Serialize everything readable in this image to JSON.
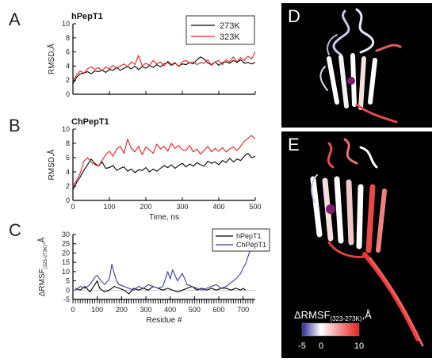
{
  "panel_letters": [
    "A",
    "B",
    "C",
    "D",
    "E"
  ],
  "chart_data": [
    {
      "type": "line",
      "title": "hPepT1",
      "xlabel": "",
      "ylabel": "RMSD,Å",
      "xlim": [
        0,
        500
      ],
      "ylim": [
        0,
        10
      ],
      "yticks": [
        "0",
        "2",
        "4",
        "6",
        "8",
        "10"
      ],
      "legend_position": "top-right",
      "series": [
        {
          "name": "273K",
          "color": "#000000",
          "x": [
            0,
            10,
            20,
            30,
            40,
            50,
            60,
            70,
            80,
            90,
            100,
            110,
            120,
            130,
            140,
            150,
            160,
            170,
            180,
            190,
            200,
            210,
            220,
            230,
            240,
            250,
            260,
            270,
            280,
            290,
            300,
            310,
            320,
            330,
            340,
            350,
            360,
            370,
            380,
            390,
            400,
            410,
            420,
            430,
            440,
            450,
            460,
            470,
            480,
            490,
            500
          ],
          "y": [
            1.5,
            2.4,
            2.9,
            3.0,
            3.2,
            2.9,
            3.3,
            3.2,
            3.4,
            3.1,
            3.5,
            3.4,
            3.8,
            3.4,
            3.7,
            3.9,
            3.6,
            4.0,
            3.5,
            3.9,
            3.7,
            4.1,
            3.8,
            4.2,
            3.9,
            4.3,
            4.5,
            4.1,
            4.4,
            4.0,
            4.3,
            4.2,
            4.5,
            4.3,
            4.9,
            5.3,
            5.0,
            4.4,
            4.2,
            4.6,
            4.1,
            4.5,
            4.6,
            4.4,
            4.8,
            4.5,
            4.9,
            4.4,
            4.5,
            4.3,
            4.5
          ]
        },
        {
          "name": "323K",
          "color": "#e8201f",
          "x": [
            0,
            10,
            20,
            30,
            40,
            50,
            60,
            70,
            80,
            90,
            100,
            110,
            120,
            130,
            140,
            150,
            160,
            170,
            180,
            190,
            200,
            210,
            220,
            230,
            240,
            250,
            260,
            270,
            280,
            290,
            300,
            310,
            320,
            330,
            340,
            350,
            360,
            370,
            380,
            390,
            400,
            410,
            420,
            430,
            440,
            450,
            460,
            470,
            480,
            490,
            500
          ],
          "y": [
            2.0,
            2.7,
            3.3,
            3.0,
            3.6,
            3.9,
            3.5,
            3.8,
            3.3,
            3.9,
            3.6,
            4.1,
            3.7,
            4.0,
            4.3,
            3.9,
            4.6,
            4.2,
            5.5,
            4.0,
            4.4,
            4.1,
            4.8,
            4.3,
            4.6,
            4.0,
            4.7,
            4.2,
            4.5,
            3.9,
            4.6,
            4.8,
            4.4,
            4.6,
            4.2,
            4.5,
            4.4,
            4.9,
            4.1,
            4.6,
            4.8,
            4.2,
            4.9,
            4.6,
            5.3,
            4.6,
            5.2,
            4.8,
            5.4,
            5.0,
            6.0
          ]
        }
      ]
    },
    {
      "type": "line",
      "title": "ChPepT1",
      "xlabel": "Time, ns",
      "ylabel": "RMSD,Å",
      "xlim": [
        0,
        500
      ],
      "ylim": [
        0,
        10
      ],
      "yticks": [
        "0",
        "2",
        "4",
        "6",
        "8",
        "10"
      ],
      "xticks": [
        "0",
        "100",
        "200",
        "300",
        "400",
        "500"
      ],
      "series": [
        {
          "name": "273K",
          "color": "#000000",
          "x": [
            0,
            10,
            20,
            30,
            40,
            50,
            60,
            70,
            80,
            90,
            100,
            110,
            120,
            130,
            140,
            150,
            160,
            170,
            180,
            190,
            200,
            210,
            220,
            230,
            240,
            250,
            260,
            270,
            280,
            290,
            300,
            310,
            320,
            330,
            340,
            350,
            360,
            370,
            380,
            390,
            400,
            410,
            420,
            430,
            440,
            450,
            460,
            470,
            480,
            490,
            500
          ],
          "y": [
            1.5,
            2.5,
            3.3,
            4.2,
            5.0,
            5.8,
            5.2,
            4.8,
            5.4,
            4.5,
            4.6,
            4.9,
            4.2,
            4.5,
            4.7,
            4.1,
            4.4,
            3.9,
            4.3,
            4.2,
            4.6,
            4.0,
            4.4,
            4.1,
            4.5,
            4.9,
            4.6,
            5.0,
            4.5,
            4.9,
            5.2,
            4.7,
            5.1,
            4.8,
            5.3,
            5.0,
            4.8,
            5.5,
            5.2,
            5.4,
            5.0,
            5.6,
            5.3,
            5.9,
            5.4,
            5.8,
            5.6,
            6.2,
            6.6,
            6.0,
            6.2
          ]
        },
        {
          "name": "323K",
          "color": "#e8201f",
          "x": [
            0,
            10,
            20,
            30,
            40,
            50,
            60,
            70,
            80,
            90,
            100,
            110,
            120,
            130,
            140,
            150,
            160,
            170,
            180,
            190,
            200,
            210,
            220,
            230,
            240,
            250,
            260,
            270,
            280,
            290,
            300,
            310,
            320,
            330,
            340,
            350,
            360,
            370,
            380,
            390,
            400,
            410,
            420,
            430,
            440,
            450,
            460,
            470,
            480,
            490,
            500
          ],
          "y": [
            2.0,
            2.8,
            3.8,
            5.5,
            6.0,
            5.4,
            5.0,
            4.8,
            5.6,
            6.4,
            6.9,
            6.2,
            7.2,
            7.6,
            6.6,
            8.6,
            7.3,
            6.8,
            7.6,
            6.4,
            7.5,
            7.1,
            6.6,
            7.9,
            7.2,
            7.6,
            6.9,
            8.0,
            7.3,
            7.7,
            7.1,
            7.0,
            7.7,
            6.8,
            7.2,
            6.5,
            7.0,
            7.6,
            6.8,
            7.3,
            6.9,
            7.4,
            6.8,
            7.2,
            7.5,
            7.0,
            7.6,
            8.3,
            8.7,
            9.1,
            8.6
          ]
        }
      ]
    },
    {
      "type": "line",
      "title": "",
      "xlabel": "Residue #",
      "ylabel": "ΔRMSF(323-273K),Å",
      "ylabel_main": "ΔRMSF",
      "ylabel_sub": "(323-273K)",
      "ylabel_tail": ",Å",
      "xlim": [
        0,
        750
      ],
      "ylim": [
        -5,
        30
      ],
      "yticks": [
        "-5",
        "0",
        "5",
        "10",
        "15",
        "20",
        "25",
        "30"
      ],
      "xticks": [
        "0",
        "100",
        "200",
        "300",
        "400",
        "500",
        "600",
        "700"
      ],
      "legend_position": "top-right",
      "series": [
        {
          "name": "hPepT1",
          "color": "#000000",
          "x": [
            10,
            30,
            50,
            70,
            90,
            100,
            110,
            130,
            150,
            170,
            190,
            210,
            230,
            250,
            270,
            290,
            310,
            330,
            350,
            370,
            390,
            410,
            430,
            450,
            470,
            490,
            510,
            530,
            550,
            570,
            590,
            610,
            630,
            650,
            670,
            690,
            700,
            710
          ],
          "y": [
            1,
            0,
            2,
            -1,
            3,
            5,
            1,
            -1,
            0,
            2,
            1,
            0,
            -2,
            1,
            0,
            1,
            0,
            2,
            1,
            0,
            1,
            0,
            -1,
            0,
            1,
            2,
            0,
            1,
            0,
            1,
            0,
            1,
            1,
            0,
            1,
            0,
            1,
            0
          ]
        },
        {
          "name": "ChPepT1",
          "color": "#3c3c9c",
          "x": [
            10,
            30,
            50,
            70,
            90,
            100,
            110,
            130,
            150,
            160,
            170,
            180,
            190,
            210,
            230,
            250,
            270,
            290,
            310,
            330,
            350,
            370,
            390,
            400,
            410,
            430,
            450,
            470,
            490,
            510,
            530,
            550,
            570,
            590,
            610,
            630,
            650,
            670,
            690,
            700,
            710,
            720,
            730
          ],
          "y": [
            0,
            2,
            1,
            3,
            7,
            8,
            6,
            3,
            6,
            14,
            9,
            5,
            3,
            2,
            1,
            0,
            2,
            1,
            3,
            2,
            1,
            2,
            10,
            6,
            11,
            5,
            9,
            3,
            2,
            1,
            0,
            1,
            2,
            3,
            1,
            2,
            4,
            6,
            9,
            12,
            14,
            18,
            22
          ]
        }
      ]
    }
  ],
  "structure_panels": {
    "colorbar_label_main": "ΔRMSF",
    "colorbar_label_sub": "(323-273K)",
    "colorbar_label_tail": ",Å",
    "colorbar_ticks": [
      "-5",
      "0",
      "10"
    ],
    "colorbar_colors": [
      "#2a2a9a",
      "#ffffff",
      "#e8201f"
    ]
  }
}
